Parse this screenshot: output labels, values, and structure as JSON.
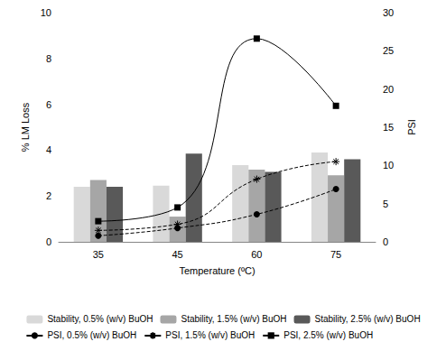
{
  "chart_data": {
    "type": "bar",
    "x_label": "Temperature (ºC)",
    "y_label": "% LM Loss",
    "y2_label": "PSI",
    "categories": [
      "35",
      "45",
      "60",
      "75"
    ],
    "ylim": [
      0,
      10
    ],
    "yticks": [
      0,
      2,
      4,
      6,
      8,
      10
    ],
    "y2lim": [
      0,
      30
    ],
    "y2ticks": [
      0,
      5,
      10,
      15,
      20,
      25,
      30
    ],
    "grid": false,
    "legend": "bottom",
    "series": [
      {
        "name": "Stability, 0.5% (w/v) BuOH",
        "type": "bar",
        "color": "#d9d9d9",
        "values": [
          2.4,
          2.45,
          3.35,
          3.9
        ]
      },
      {
        "name": "Stability, 1.5% (w/v) BuOH",
        "type": "bar",
        "color": "#a6a6a6",
        "values": [
          2.7,
          1.1,
          3.15,
          2.9
        ]
      },
      {
        "name": "Stability, 2.5% (w/v) BuOH",
        "type": "bar",
        "color": "#595959",
        "values": [
          2.4,
          3.85,
          3.05,
          3.6
        ]
      },
      {
        "name": "PSI, 0.5% (w/v) BuOH",
        "type": "line",
        "axis": "y2",
        "color": "#000000",
        "marker": "circle",
        "line_style": "dashed",
        "values": [
          0.8,
          1.8,
          3.6,
          6.9
        ]
      },
      {
        "name": "PSI, 1.5% (w/v) BuOH",
        "type": "line",
        "axis": "y2",
        "color": "#000000",
        "marker": "star",
        "line_style": "dashed",
        "values": [
          1.5,
          2.3,
          8.2,
          10.5
        ]
      },
      {
        "name": "PSI, 2.5% (w/v) BuOH",
        "type": "line",
        "axis": "y2",
        "color": "#000000",
        "marker": "square",
        "line_style": "solid",
        "values": [
          2.7,
          4.5,
          26.6,
          17.8
        ]
      }
    ]
  }
}
